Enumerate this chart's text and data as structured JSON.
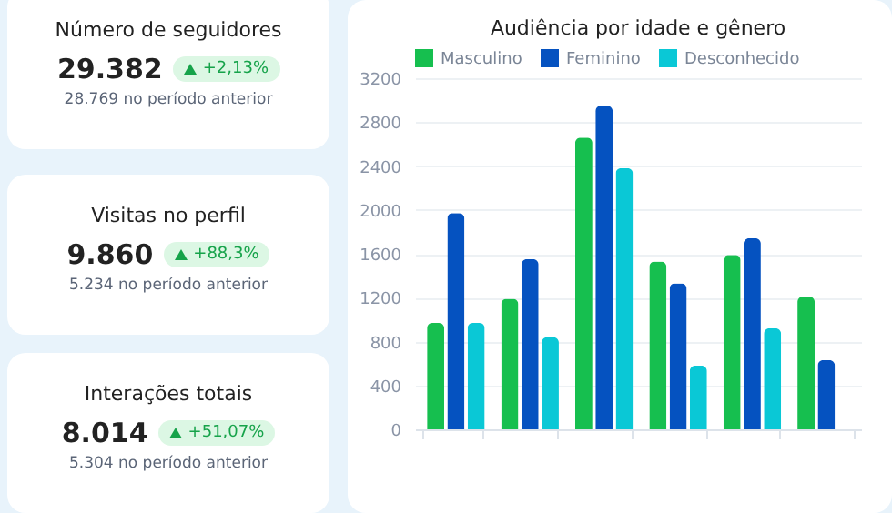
{
  "chart_data": [
    {
      "type": "other",
      "title": "Número de seguidores",
      "annotations": [
        "29.382",
        "+2,13%",
        "28.769 no período anterior"
      ]
    },
    {
      "type": "other",
      "title": "Visitas no perfil",
      "annotations": [
        "9.860",
        "+88,3%",
        "5.234 no período anterior"
      ]
    },
    {
      "type": "other",
      "title": "Interações totais",
      "annotations": [
        "8.014",
        "+51,07%",
        "5.304 no período anterior"
      ]
    },
    {
      "type": "bar",
      "title": "Audiência por idade e gênero",
      "categories": [
        null,
        null,
        null,
        null,
        null,
        null
      ],
      "series": [
        {
          "name": "Masculino",
          "color": "#16bf4f",
          "values": [
            970,
            1190,
            2660,
            1530,
            1590,
            1210
          ]
        },
        {
          "name": "Feminino",
          "color": "#0552c0",
          "values": [
            1970,
            1550,
            2950,
            1330,
            1740,
            630
          ]
        },
        {
          "name": "Desconhecido",
          "color": "#0ac8d6",
          "values": [
            970,
            840,
            2380,
            580,
            920,
            null
          ]
        }
      ],
      "ylim": [
        0,
        3200
      ],
      "yticks": [
        0,
        400,
        800,
        1200,
        1600,
        2000,
        2400,
        2800,
        3200
      ],
      "grid": "y",
      "legend": "top"
    }
  ]
}
